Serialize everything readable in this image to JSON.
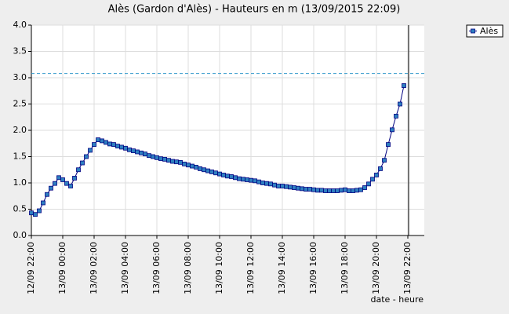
{
  "chart_data": {
    "type": "line",
    "title": "Alès (Gardon d'Alès) - Hauteurs en m (13/09/2015 22:09)",
    "x_label": "date - heure",
    "x": [
      0,
      0.25,
      0.5,
      0.75,
      1,
      1.25,
      1.5,
      1.75,
      2,
      2.25,
      2.5,
      2.75,
      3,
      3.25,
      3.5,
      3.75,
      4,
      4.25,
      4.5,
      4.75,
      5,
      5.25,
      5.5,
      5.75,
      6,
      6.25,
      6.5,
      6.75,
      7,
      7.25,
      7.5,
      7.75,
      8,
      8.25,
      8.5,
      8.75,
      9,
      9.25,
      9.5,
      9.75,
      10,
      10.25,
      10.5,
      10.75,
      11,
      11.25,
      11.5,
      11.75,
      12,
      12.25,
      12.5,
      12.75,
      13,
      13.25,
      13.5,
      13.75,
      14,
      14.25,
      14.5,
      14.75,
      15,
      15.25,
      15.5,
      15.75,
      16,
      16.25,
      16.5,
      16.75,
      17,
      17.25,
      17.5,
      17.75,
      18,
      18.25,
      18.5,
      18.75,
      19,
      19.25,
      19.5,
      19.75,
      20,
      20.25,
      20.5,
      20.75,
      21,
      21.25,
      21.5,
      21.75,
      22,
      22.25,
      22.5,
      22.75,
      23,
      23.25,
      23.5,
      23.75
    ],
    "series": [
      {
        "name": "Alès",
        "color": "#000080",
        "marker_color": "#2e7fc0",
        "values": [
          0.43,
          0.4,
          0.47,
          0.62,
          0.78,
          0.9,
          0.99,
          1.1,
          1.06,
          0.99,
          0.94,
          1.09,
          1.25,
          1.38,
          1.5,
          1.62,
          1.73,
          1.82,
          1.8,
          1.77,
          1.74,
          1.73,
          1.7,
          1.68,
          1.66,
          1.63,
          1.61,
          1.59,
          1.57,
          1.55,
          1.52,
          1.5,
          1.48,
          1.46,
          1.45,
          1.43,
          1.41,
          1.4,
          1.39,
          1.36,
          1.34,
          1.32,
          1.3,
          1.27,
          1.25,
          1.23,
          1.21,
          1.19,
          1.17,
          1.15,
          1.13,
          1.12,
          1.1,
          1.08,
          1.07,
          1.06,
          1.05,
          1.04,
          1.02,
          1.0,
          0.99,
          0.98,
          0.96,
          0.94,
          0.94,
          0.93,
          0.92,
          0.91,
          0.9,
          0.89,
          0.88,
          0.88,
          0.87,
          0.86,
          0.86,
          0.85,
          0.85,
          0.85,
          0.85,
          0.86,
          0.87,
          0.85,
          0.85,
          0.86,
          0.87,
          0.91,
          0.98,
          1.07,
          1.15,
          1.27,
          1.43,
          1.73,
          2.01,
          2.27,
          2.5,
          2.85
        ]
      }
    ],
    "xlim": [
      0,
      25.05
    ],
    "xticks": [
      {
        "value": 0,
        "label": "12/09 22:00"
      },
      {
        "value": 2,
        "label": "13/09 00:00"
      },
      {
        "value": 4,
        "label": "13/09 02:00"
      },
      {
        "value": 6,
        "label": "13/09 04:00"
      },
      {
        "value": 8,
        "label": "13/09 06:00"
      },
      {
        "value": 10,
        "label": "13/09 08:00"
      },
      {
        "value": 12,
        "label": "13/09 10:00"
      },
      {
        "value": 14,
        "label": "13/09 12:00"
      },
      {
        "value": 16,
        "label": "13/09 14:00"
      },
      {
        "value": 18,
        "label": "13/09 16:00"
      },
      {
        "value": 20,
        "label": "13/09 18:00"
      },
      {
        "value": 22,
        "label": "13/09 20:00"
      },
      {
        "value": 24,
        "label": "13/09 22:00"
      }
    ],
    "ylim": [
      0,
      4
    ],
    "yticks": [
      {
        "value": 0,
        "label": "0.0"
      },
      {
        "value": 0.5,
        "label": "0.5"
      },
      {
        "value": 1,
        "label": "1.0"
      },
      {
        "value": 1.5,
        "label": "1.5"
      },
      {
        "value": 2,
        "label": "2.0"
      },
      {
        "value": 2.5,
        "label": "2.5"
      },
      {
        "value": 3,
        "label": "3.0"
      },
      {
        "value": 3.5,
        "label": "3.5"
      },
      {
        "value": 4,
        "label": "4.0"
      }
    ],
    "threshold": 3.08,
    "threshold_color": "#3399cc",
    "now_line": 24.05,
    "now_color": "#000000",
    "grid": true,
    "legend": "top-right"
  }
}
